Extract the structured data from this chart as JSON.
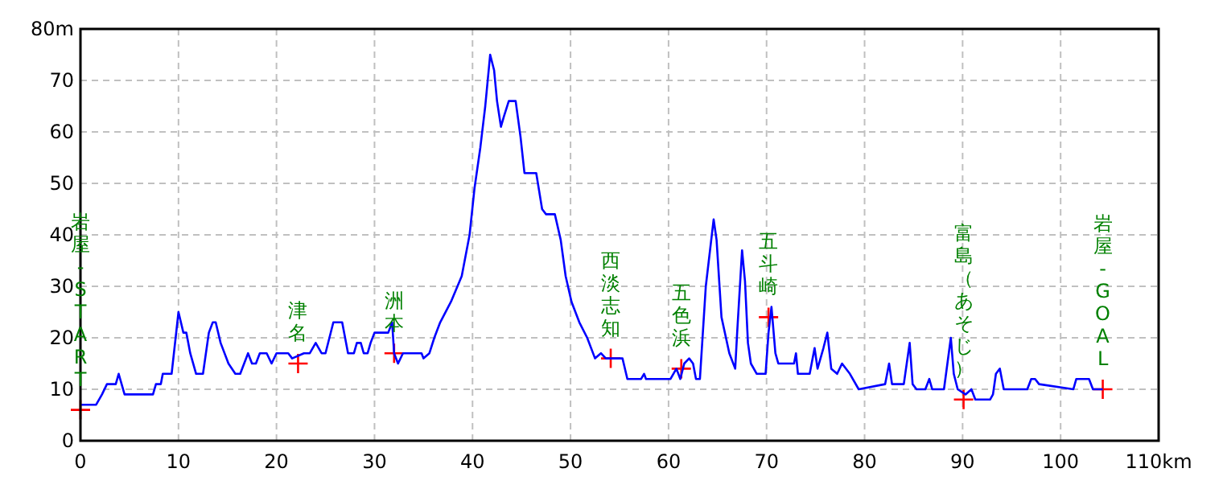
{
  "chart_data": {
    "type": "line",
    "xlim": [
      0,
      110
    ],
    "ylim": [
      0,
      80
    ],
    "xticks": [
      0,
      10,
      20,
      30,
      40,
      50,
      60,
      70,
      80,
      90,
      100,
      {
        "value": 110,
        "label": "110km"
      }
    ],
    "yticks": [
      0,
      10,
      20,
      30,
      40,
      50,
      60,
      70,
      {
        "value": 80,
        "label": "80m"
      }
    ],
    "grid": true,
    "series": [
      {
        "type": "line",
        "color": "#0000ff",
        "line_style": "solid",
        "x": [
          0,
          1.6,
          2.2,
          2.7,
          3.6,
          3.9,
          4.5,
          7.4,
          7.7,
          8.2,
          8.4,
          9.3,
          10.0,
          10.5,
          10.8,
          11.2,
          11.8,
          12.5,
          13.1,
          13.5,
          13.8,
          14.3,
          15.1,
          15.8,
          16.3,
          17.1,
          17.5,
          17.9,
          18.3,
          19.0,
          19.5,
          20.0,
          21.2,
          21.6,
          22.8,
          23.4,
          24.0,
          24.6,
          25.0,
          25.8,
          26.7,
          27.3,
          27.9,
          28.2,
          28.6,
          28.9,
          29.3,
          29.6,
          30.0,
          31.4,
          31.8,
          32.0,
          32.4,
          32.9,
          34.8,
          35.0,
          35.6,
          36.1,
          36.7,
          37.8,
          38.9,
          39.7,
          40.2,
          40.8,
          41.3,
          41.8,
          42.2,
          42.5,
          42.9,
          43.2,
          43.7,
          44.1,
          44.4,
          44.9,
          45.3,
          46.5,
          47.1,
          47.5,
          48.4,
          49.0,
          49.5,
          50.1,
          50.9,
          51.7,
          52.5,
          53.1,
          53.6,
          55.3,
          55.8,
          57.2,
          57.5,
          57.7,
          60.2,
          60.8,
          61.2,
          61.6,
          62.1,
          62.5,
          62.8,
          63.2,
          63.8,
          64.6,
          64.9,
          65.4,
          66.2,
          66.8,
          67.0,
          67.5,
          67.8,
          68.1,
          68.4,
          69.0,
          69.9,
          70.2,
          70.5,
          70.9,
          71.2,
          72.8,
          73.0,
          73.2,
          74.4,
          74.9,
          75.2,
          75.8,
          76.2,
          76.6,
          77.2,
          77.7,
          78.5,
          79.4,
          82.1,
          82.5,
          82.8,
          84.0,
          84.6,
          84.9,
          85.3,
          86.2,
          86.6,
          86.9,
          88.1,
          88.8,
          89.1,
          89.5,
          90.3,
          90.9,
          91.3,
          92.8,
          93.1,
          93.4,
          93.8,
          94.2,
          96.6,
          97.0,
          97.4,
          97.8,
          101.3,
          101.6,
          102.9,
          103.3,
          104.3
        ],
        "values": [
          7,
          7,
          9,
          11,
          11,
          13,
          9,
          9,
          11,
          11,
          13,
          13,
          25,
          21,
          21,
          17,
          13,
          13,
          21,
          23,
          23,
          19,
          15,
          13,
          13,
          17,
          15,
          15,
          17,
          17,
          15,
          17,
          17,
          16,
          17,
          17,
          19,
          17,
          17,
          23,
          23,
          17,
          17,
          19,
          19,
          17,
          17,
          19,
          21,
          21,
          23,
          17,
          15,
          17,
          17,
          16,
          17,
          20,
          23,
          27,
          32,
          40,
          49,
          57,
          65,
          75,
          72,
          66,
          61,
          63,
          66,
          66,
          66,
          59,
          52,
          52,
          45,
          44,
          44,
          39,
          32,
          27,
          23,
          20,
          16,
          17,
          16,
          16,
          12,
          12,
          13,
          12,
          12,
          14,
          12,
          15,
          16,
          15,
          12,
          12,
          30,
          43,
          39,
          24,
          17,
          14,
          21,
          37,
          31,
          19,
          15,
          13,
          13,
          21,
          26,
          17,
          15,
          15,
          17,
          13,
          13,
          18,
          14,
          18,
          21,
          14,
          13,
          15,
          13,
          10,
          11,
          15,
          11,
          11,
          19,
          11,
          10,
          10,
          12,
          10,
          10,
          20,
          13,
          10,
          9,
          10,
          8,
          8,
          9,
          13,
          14,
          10,
          10,
          12,
          12,
          11,
          10,
          12,
          12,
          10,
          10
        ]
      },
      {
        "type": "scatter",
        "color": "#ff0000",
        "marker": "cross",
        "x": [
          0,
          22.2,
          32,
          54.1,
          61.3,
          70.2,
          90.1,
          104.3
        ],
        "values": [
          6,
          15,
          17,
          16,
          14,
          24,
          8,
          10
        ]
      }
    ],
    "annotations": [
      {
        "text": "岩屋 - START",
        "x": 0,
        "y": 6
      },
      {
        "text": "津名",
        "x": 22.2,
        "y": 15
      },
      {
        "text": "洲本",
        "x": 32,
        "y": 17
      },
      {
        "text": "西淡志知",
        "x": 54.1,
        "y": 16
      },
      {
        "text": "五色浜",
        "x": 61.3,
        "y": 14
      },
      {
        "text": "五斗崎",
        "x": 70.2,
        "y": 24
      },
      {
        "text": "富島（あそじ）",
        "x": 90.1,
        "y": 8
      },
      {
        "text": "岩屋 - GOAL",
        "x": 104.3,
        "y": 10
      }
    ]
  }
}
